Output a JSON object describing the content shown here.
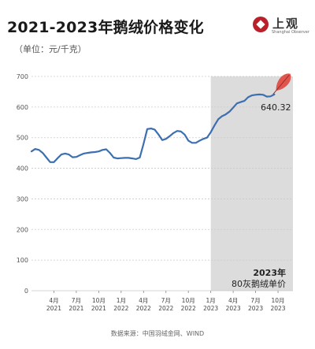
{
  "header": {
    "title": "2021-2023年鹅绒价格变化",
    "unit": "（单位：元/千克）"
  },
  "brand": {
    "name": "上观",
    "subname": "Shanghai Observer",
    "color": "#b9202a",
    "feather_icon": "feather-icon"
  },
  "source": "数据来源：中国羽绒金网、WIND",
  "chart_data": {
    "type": "line",
    "ylim": [
      0,
      700
    ],
    "yticks": [
      0,
      100,
      200,
      300,
      400,
      500,
      600,
      700
    ],
    "xlim": [
      0,
      35
    ],
    "x_ticks": [
      {
        "x": 3,
        "line1": "4月",
        "line2": "2021"
      },
      {
        "x": 6,
        "line1": "7月",
        "line2": "2021"
      },
      {
        "x": 9,
        "line1": "10月",
        "line2": "2021"
      },
      {
        "x": 12,
        "line1": "1月",
        "line2": "2022"
      },
      {
        "x": 15,
        "line1": "4月",
        "line2": "2022"
      },
      {
        "x": 18,
        "line1": "7月",
        "line2": "2022"
      },
      {
        "x": 21,
        "line1": "10月",
        "line2": "2022"
      },
      {
        "x": 24,
        "line1": "1月",
        "line2": "2023"
      },
      {
        "x": 27,
        "line1": "4月",
        "line2": "2023"
      },
      {
        "x": 30,
        "line1": "7月",
        "line2": "2023"
      },
      {
        "x": 33,
        "line1": "10月",
        "line2": "2023"
      }
    ],
    "highlight": {
      "x_start": 24,
      "x_end": 35,
      "color": "#dcdcdc",
      "label_line1": "2023年",
      "label_line2": "80灰鹅绒单价"
    },
    "series": [
      {
        "color": "#3d6fb0",
        "points": [
          [
            0,
            455
          ],
          [
            0.5,
            463
          ],
          [
            1,
            460
          ],
          [
            1.5,
            450
          ],
          [
            2,
            435
          ],
          [
            2.5,
            420
          ],
          [
            3,
            420
          ],
          [
            3.5,
            433
          ],
          [
            4,
            445
          ],
          [
            4.5,
            448
          ],
          [
            5,
            445
          ],
          [
            5.5,
            436
          ],
          [
            6,
            437
          ],
          [
            6.5,
            443
          ],
          [
            7,
            448
          ],
          [
            7.5,
            450
          ],
          [
            8,
            452
          ],
          [
            8.5,
            453
          ],
          [
            9,
            455
          ],
          [
            9.5,
            460
          ],
          [
            10,
            462
          ],
          [
            10.5,
            450
          ],
          [
            11,
            435
          ],
          [
            11.5,
            432
          ],
          [
            12,
            433
          ],
          [
            12.5,
            434
          ],
          [
            13,
            434
          ],
          [
            13.5,
            432
          ],
          [
            14,
            430
          ],
          [
            14.5,
            435
          ],
          [
            15,
            480
          ],
          [
            15.5,
            528
          ],
          [
            16,
            530
          ],
          [
            16.5,
            526
          ],
          [
            17,
            510
          ],
          [
            17.5,
            492
          ],
          [
            18,
            496
          ],
          [
            18.5,
            505
          ],
          [
            19,
            515
          ],
          [
            19.5,
            522
          ],
          [
            20,
            520
          ],
          [
            20.5,
            510
          ],
          [
            21,
            490
          ],
          [
            21.5,
            483
          ],
          [
            22,
            483
          ],
          [
            22.5,
            490
          ],
          [
            23,
            496
          ],
          [
            23.5,
            500
          ],
          [
            24,
            518
          ],
          [
            24.5,
            540
          ],
          [
            25,
            560
          ],
          [
            25.5,
            570
          ],
          [
            26,
            576
          ],
          [
            26.5,
            585
          ],
          [
            27,
            598
          ],
          [
            27.5,
            612
          ],
          [
            28,
            616
          ],
          [
            28.5,
            620
          ],
          [
            29,
            632
          ],
          [
            29.5,
            638
          ],
          [
            30,
            640
          ],
          [
            30.5,
            641
          ],
          [
            31,
            640
          ],
          [
            31.5,
            634
          ],
          [
            32,
            635
          ],
          [
            32.5,
            641
          ]
        ],
        "end_label": "640.32"
      }
    ]
  }
}
